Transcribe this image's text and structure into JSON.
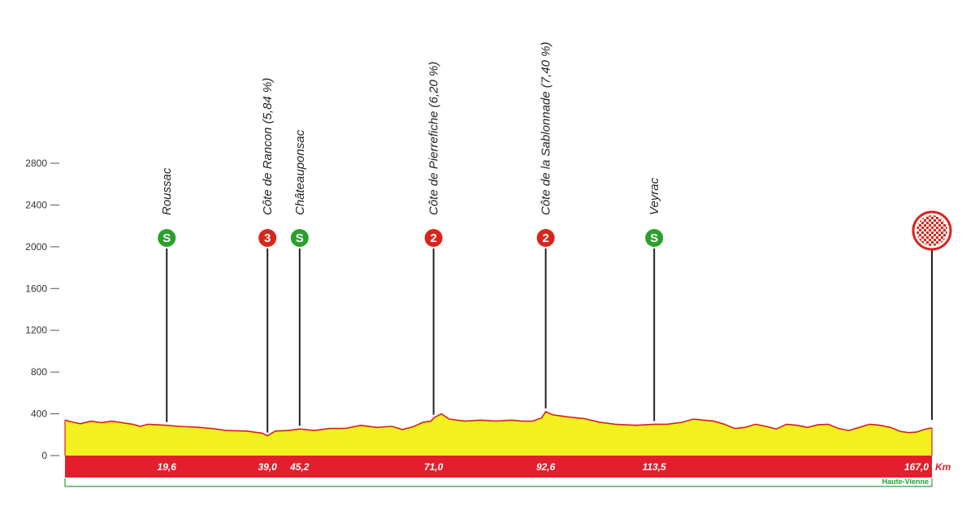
{
  "chart_data": {
    "type": "area",
    "title": "",
    "xlabel": "",
    "ylabel": "",
    "x_unit": "Km",
    "xlim": [
      0,
      167.0
    ],
    "ylim": [
      0,
      2800
    ],
    "yticks": [
      0,
      400,
      800,
      1200,
      1600,
      2000,
      2400,
      2800
    ],
    "grid": false,
    "legend": "none",
    "region": "Haute-Vienne",
    "colors": {
      "fill": "#f2f01e",
      "line": "#d42020",
      "km_band": "#e31e2d",
      "sprint": "#2aa12a",
      "climb": "#d9261c",
      "finish": "#d9261c",
      "region": "#2a9d3a"
    },
    "series": [
      {
        "values": [
          [
            0,
            340
          ],
          [
            1.5,
            320
          ],
          [
            3,
            305
          ],
          [
            5,
            330
          ],
          [
            7,
            315
          ],
          [
            9,
            330
          ],
          [
            11,
            315
          ],
          [
            13,
            300
          ],
          [
            14.5,
            280
          ],
          [
            16,
            300
          ],
          [
            19.6,
            290
          ],
          [
            22,
            280
          ],
          [
            26,
            270
          ],
          [
            29,
            255
          ],
          [
            31,
            240
          ],
          [
            35,
            235
          ],
          [
            38,
            215
          ],
          [
            39.0,
            190
          ],
          [
            40.5,
            235
          ],
          [
            43,
            240
          ],
          [
            45.2,
            255
          ],
          [
            48,
            240
          ],
          [
            51,
            260
          ],
          [
            54,
            260
          ],
          [
            57,
            290
          ],
          [
            60,
            270
          ],
          [
            63,
            280
          ],
          [
            65,
            250
          ],
          [
            67,
            275
          ],
          [
            69,
            320
          ],
          [
            70.5,
            330
          ],
          [
            71.0,
            360
          ],
          [
            72.5,
            400
          ],
          [
            74,
            350
          ],
          [
            77,
            330
          ],
          [
            80,
            340
          ],
          [
            83,
            330
          ],
          [
            86,
            340
          ],
          [
            88,
            330
          ],
          [
            90,
            330
          ],
          [
            91.8,
            360
          ],
          [
            92.6,
            420
          ],
          [
            94,
            390
          ],
          [
            97,
            370
          ],
          [
            100,
            355
          ],
          [
            103,
            320
          ],
          [
            106,
            300
          ],
          [
            110,
            290
          ],
          [
            113.5,
            300
          ],
          [
            116,
            300
          ],
          [
            119,
            320
          ],
          [
            121,
            350
          ],
          [
            123,
            340
          ],
          [
            125,
            330
          ],
          [
            127,
            300
          ],
          [
            129,
            260
          ],
          [
            131,
            270
          ],
          [
            133,
            300
          ],
          [
            135,
            280
          ],
          [
            137,
            255
          ],
          [
            139,
            300
          ],
          [
            141,
            290
          ],
          [
            143,
            270
          ],
          [
            145,
            295
          ],
          [
            147,
            300
          ],
          [
            149,
            260
          ],
          [
            151,
            240
          ],
          [
            153,
            270
          ],
          [
            155,
            300
          ],
          [
            157,
            290
          ],
          [
            159,
            270
          ],
          [
            161,
            230
          ],
          [
            162.5,
            220
          ],
          [
            164,
            225
          ],
          [
            165.5,
            250
          ],
          [
            167.0,
            265
          ]
        ]
      }
    ],
    "waypoints": [
      {
        "name": "Roussac",
        "km": 19.6,
        "km_label": "19,6",
        "type": "sprint",
        "badge": "S"
      },
      {
        "name": "Côte de Rancon (5,84 %)",
        "km": 39.0,
        "km_label": "39,0",
        "type": "climb",
        "badge": "3"
      },
      {
        "name": "Châteauponsac",
        "km": 45.2,
        "km_label": "45,2",
        "type": "sprint",
        "badge": "S"
      },
      {
        "name": "Côte de Pierrefiche (6,20 %)",
        "km": 71.0,
        "km_label": "71,0",
        "type": "climb",
        "badge": "2"
      },
      {
        "name": "Côte de la Sablonnade (7,40 %)",
        "km": 92.6,
        "km_label": "92,6",
        "type": "climb",
        "badge": "2"
      },
      {
        "name": "Veyrac",
        "km": 113.5,
        "km_label": "113,5",
        "type": "sprint",
        "badge": "S"
      },
      {
        "name": "",
        "km": 167.0,
        "km_label": "167,0",
        "type": "finish",
        "badge": ""
      }
    ]
  }
}
